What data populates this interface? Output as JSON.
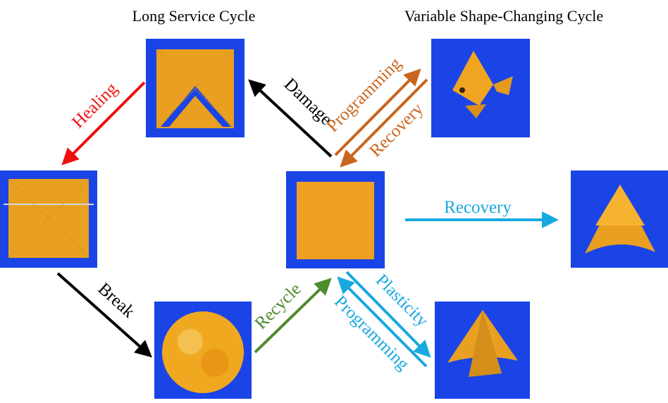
{
  "titles": {
    "left": "Long Service Cycle",
    "right": "Variable Shape-Changing Cycle"
  },
  "arrows": {
    "healing": {
      "label": "Healing",
      "color": "#ee1111"
    },
    "damage": {
      "label": "Damage",
      "color": "#000000"
    },
    "programming_top": {
      "label": "Programming",
      "color": "#c8651e"
    },
    "recovery_top": {
      "label": "Recovery",
      "color": "#c8651e"
    },
    "recovery_right": {
      "label": "Recovery",
      "color": "#18a8e0"
    },
    "break": {
      "label": "Break",
      "color": "#000000"
    },
    "recycle": {
      "label": "Recycle",
      "color": "#4e8a2e"
    },
    "plasticity": {
      "label": "Plasticity",
      "color": "#18a8e0"
    },
    "programming_bottom": {
      "label": "Programming",
      "color": "#18a8e0"
    }
  },
  "colors": {
    "photo_background": "#1a44e6",
    "film": "#e9a020"
  }
}
